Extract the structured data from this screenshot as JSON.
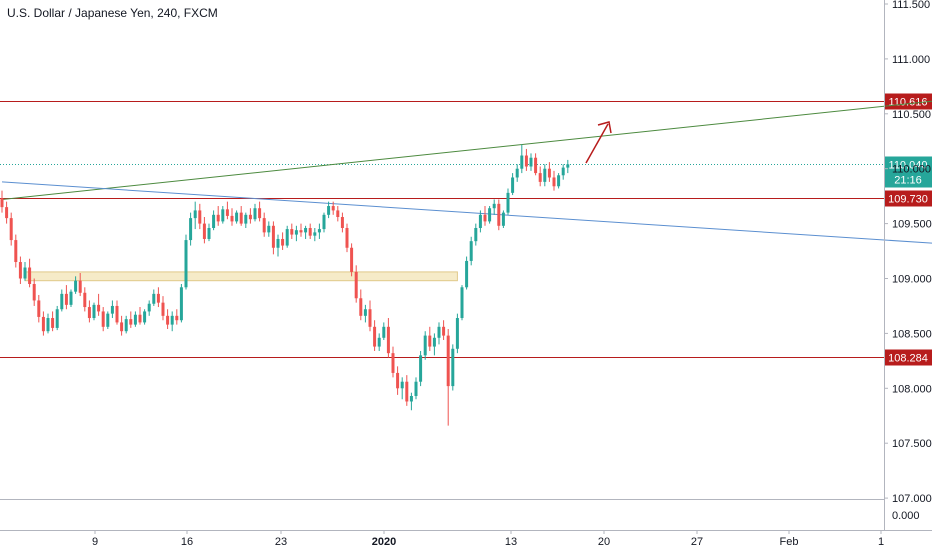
{
  "title": "U.S. Dollar / Japanese Yen, 240, FXCM",
  "colors": {
    "up": "#26a69a",
    "down": "#ef5350",
    "level_line": "#b71c1c",
    "green_trend": "#4c8a3f",
    "blue_trend": "#5b8fd0",
    "price_line": "#26a69a",
    "zone_fill": "#f6ebc8",
    "arrow": "#b71c1c",
    "axis_text": "#131722"
  },
  "chart_data": {
    "type": "candlestick",
    "title": "U.S. Dollar / Japanese Yen, 240, FXCM",
    "y_axis": {
      "ticks": [
        "111.500",
        "111.000",
        "110.500",
        "110.000",
        "109.500",
        "109.000",
        "108.500",
        "108.000",
        "107.500",
        "107.000"
      ],
      "ylim": [
        107.0,
        111.6
      ],
      "sub_pane_label": "0.000"
    },
    "x_axis": {
      "ticks": [
        "9",
        "16",
        "23",
        "2020",
        "13",
        "20",
        "27",
        "Feb",
        "1"
      ]
    },
    "horizontal_levels": [
      {
        "value": 110.616,
        "label": "110.616"
      },
      {
        "value": 109.73,
        "label": "109.730"
      },
      {
        "value": 108.284,
        "label": "108.284"
      }
    ],
    "current_price": {
      "value": 110.04,
      "label": "110.040",
      "countdown": "21:16"
    },
    "zone": {
      "from": 108.98,
      "to": 109.06
    },
    "trendlines": [
      {
        "name": "green",
        "from": {
          "bar": 0,
          "value": 109.72
        },
        "to": {
          "bar": 226,
          "value": 110.72
        }
      },
      {
        "name": "blue",
        "from": {
          "bar": 0,
          "value": 109.88
        },
        "to": {
          "bar": 250,
          "value": 109.19
        }
      }
    ],
    "ohlc": [
      [
        109.73,
        109.8,
        109.6,
        109.65
      ],
      [
        109.65,
        109.7,
        109.5,
        109.55
      ],
      [
        109.55,
        109.6,
        109.3,
        109.35
      ],
      [
        109.35,
        109.4,
        109.1,
        109.15
      ],
      [
        109.15,
        109.2,
        108.95,
        109.0
      ],
      [
        109.0,
        109.15,
        108.98,
        109.1
      ],
      [
        109.1,
        109.18,
        108.92,
        108.95
      ],
      [
        108.95,
        109.0,
        108.75,
        108.8
      ],
      [
        108.8,
        108.85,
        108.6,
        108.65
      ],
      [
        108.65,
        108.7,
        108.48,
        108.52
      ],
      [
        108.52,
        108.68,
        108.5,
        108.64
      ],
      [
        108.64,
        108.7,
        108.52,
        108.55
      ],
      [
        108.55,
        108.75,
        108.53,
        108.72
      ],
      [
        108.72,
        108.9,
        108.7,
        108.86
      ],
      [
        108.86,
        108.94,
        108.72,
        108.76
      ],
      [
        108.76,
        108.9,
        108.74,
        108.88
      ],
      [
        108.88,
        109.02,
        108.86,
        108.98
      ],
      [
        108.98,
        109.05,
        108.84,
        108.87
      ],
      [
        108.87,
        108.92,
        108.7,
        108.74
      ],
      [
        108.74,
        108.8,
        108.6,
        108.64
      ],
      [
        108.64,
        108.78,
        108.62,
        108.76
      ],
      [
        108.76,
        108.86,
        108.66,
        108.7
      ],
      [
        108.7,
        108.74,
        108.52,
        108.56
      ],
      [
        108.56,
        108.7,
        108.54,
        108.68
      ],
      [
        108.68,
        108.8,
        108.64,
        108.75
      ],
      [
        108.75,
        108.8,
        108.58,
        108.6
      ],
      [
        108.6,
        108.66,
        108.48,
        108.52
      ],
      [
        108.52,
        108.66,
        108.5,
        108.63
      ],
      [
        108.63,
        108.7,
        108.55,
        108.58
      ],
      [
        108.58,
        108.7,
        108.56,
        108.67
      ],
      [
        108.67,
        108.74,
        108.58,
        108.6
      ],
      [
        108.6,
        108.72,
        108.58,
        108.7
      ],
      [
        108.7,
        108.8,
        108.66,
        108.77
      ],
      [
        108.77,
        108.9,
        108.75,
        108.86
      ],
      [
        108.86,
        108.92,
        108.74,
        108.78
      ],
      [
        108.78,
        108.84,
        108.62,
        108.66
      ],
      [
        108.66,
        108.72,
        108.54,
        108.58
      ],
      [
        108.58,
        108.7,
        108.52,
        108.66
      ],
      [
        108.66,
        108.72,
        108.58,
        108.62
      ],
      [
        108.62,
        108.95,
        108.6,
        108.92
      ],
      [
        108.92,
        109.4,
        108.9,
        109.35
      ],
      [
        109.35,
        109.6,
        109.3,
        109.55
      ],
      [
        109.55,
        109.7,
        109.45,
        109.62
      ],
      [
        109.62,
        109.68,
        109.45,
        109.5
      ],
      [
        109.5,
        109.56,
        109.32,
        109.36
      ],
      [
        109.36,
        109.5,
        109.34,
        109.46
      ],
      [
        109.46,
        109.62,
        109.44,
        109.58
      ],
      [
        109.58,
        109.66,
        109.48,
        109.52
      ],
      [
        109.52,
        109.66,
        109.5,
        109.63
      ],
      [
        109.63,
        109.7,
        109.54,
        109.57
      ],
      [
        109.57,
        109.64,
        109.48,
        109.52
      ],
      [
        109.52,
        109.62,
        109.5,
        109.6
      ],
      [
        109.6,
        109.66,
        109.48,
        109.5
      ],
      [
        109.5,
        109.6,
        109.46,
        109.58
      ],
      [
        109.58,
        109.64,
        109.5,
        109.54
      ],
      [
        109.54,
        109.68,
        109.52,
        109.64
      ],
      [
        109.64,
        109.7,
        109.52,
        109.55
      ],
      [
        109.55,
        109.6,
        109.38,
        109.42
      ],
      [
        109.42,
        109.52,
        109.38,
        109.48
      ],
      [
        109.48,
        109.52,
        109.22,
        109.28
      ],
      [
        109.28,
        109.4,
        109.2,
        109.36
      ],
      [
        109.36,
        109.42,
        109.26,
        109.3
      ],
      [
        109.3,
        109.48,
        109.28,
        109.45
      ],
      [
        109.45,
        109.5,
        109.36,
        109.4
      ],
      [
        109.4,
        109.48,
        109.34,
        109.44
      ],
      [
        109.44,
        109.5,
        109.38,
        109.42
      ],
      [
        109.42,
        109.48,
        109.36,
        109.46
      ],
      [
        109.46,
        109.5,
        109.36,
        109.39
      ],
      [
        109.39,
        109.46,
        109.34,
        109.42
      ],
      [
        109.42,
        109.5,
        109.36,
        109.45
      ],
      [
        109.45,
        109.6,
        109.42,
        109.58
      ],
      [
        109.58,
        109.7,
        109.55,
        109.66
      ],
      [
        109.66,
        109.7,
        109.58,
        109.62
      ],
      [
        109.62,
        109.66,
        109.52,
        109.56
      ],
      [
        109.56,
        109.6,
        109.42,
        109.46
      ],
      [
        109.46,
        109.5,
        109.24,
        109.28
      ],
      [
        109.28,
        109.32,
        109.02,
        109.06
      ],
      [
        109.06,
        109.12,
        108.78,
        108.82
      ],
      [
        108.82,
        108.9,
        108.62,
        108.66
      ],
      [
        108.66,
        108.76,
        108.6,
        108.72
      ],
      [
        108.72,
        108.8,
        108.52,
        108.56
      ],
      [
        108.56,
        108.62,
        108.34,
        108.38
      ],
      [
        108.38,
        108.5,
        108.34,
        108.46
      ],
      [
        108.46,
        108.6,
        108.44,
        108.56
      ],
      [
        108.56,
        108.64,
        108.28,
        108.32
      ],
      [
        108.32,
        108.38,
        108.1,
        108.14
      ],
      [
        108.14,
        108.2,
        107.94,
        108.0
      ],
      [
        108.0,
        108.1,
        107.9,
        108.06
      ],
      [
        108.06,
        108.12,
        107.84,
        107.88
      ],
      [
        107.88,
        107.96,
        107.8,
        107.93
      ],
      [
        107.93,
        108.1,
        107.9,
        108.06
      ],
      [
        108.06,
        108.34,
        108.02,
        108.3
      ],
      [
        108.3,
        108.52,
        108.26,
        108.48
      ],
      [
        108.48,
        108.56,
        108.34,
        108.38
      ],
      [
        108.38,
        108.5,
        108.3,
        108.46
      ],
      [
        108.46,
        108.6,
        108.4,
        108.56
      ],
      [
        108.56,
        108.62,
        108.44,
        108.48
      ],
      [
        108.48,
        108.54,
        107.66,
        108.02
      ],
      [
        108.02,
        108.4,
        107.98,
        108.36
      ],
      [
        108.36,
        108.68,
        108.32,
        108.64
      ],
      [
        108.64,
        108.94,
        108.62,
        108.92
      ],
      [
        108.92,
        109.2,
        108.9,
        109.16
      ],
      [
        109.16,
        109.38,
        109.12,
        109.34
      ],
      [
        109.34,
        109.5,
        109.3,
        109.46
      ],
      [
        109.46,
        109.62,
        109.42,
        109.58
      ],
      [
        109.58,
        109.66,
        109.48,
        109.52
      ],
      [
        109.52,
        109.66,
        109.5,
        109.64
      ],
      [
        109.64,
        109.72,
        109.58,
        109.68
      ],
      [
        109.68,
        109.72,
        109.44,
        109.48
      ],
      [
        109.48,
        109.62,
        109.46,
        109.6
      ],
      [
        109.6,
        109.82,
        109.58,
        109.78
      ],
      [
        109.78,
        109.96,
        109.76,
        109.92
      ],
      [
        109.92,
        110.04,
        109.88,
        110.0
      ],
      [
        110.0,
        110.22,
        109.96,
        110.12
      ],
      [
        110.12,
        110.18,
        109.98,
        110.02
      ],
      [
        110.02,
        110.14,
        109.98,
        110.1
      ],
      [
        110.1,
        110.14,
        109.94,
        109.96
      ],
      [
        109.96,
        110.02,
        109.84,
        109.88
      ],
      [
        109.88,
        110.04,
        109.84,
        110.0
      ],
      [
        110.0,
        110.06,
        109.88,
        109.92
      ],
      [
        109.92,
        109.98,
        109.8,
        109.84
      ],
      [
        109.84,
        109.96,
        109.82,
        109.94
      ],
      [
        109.94,
        110.04,
        109.9,
        110.01
      ],
      [
        110.01,
        110.08,
        109.96,
        110.04
      ]
    ]
  }
}
